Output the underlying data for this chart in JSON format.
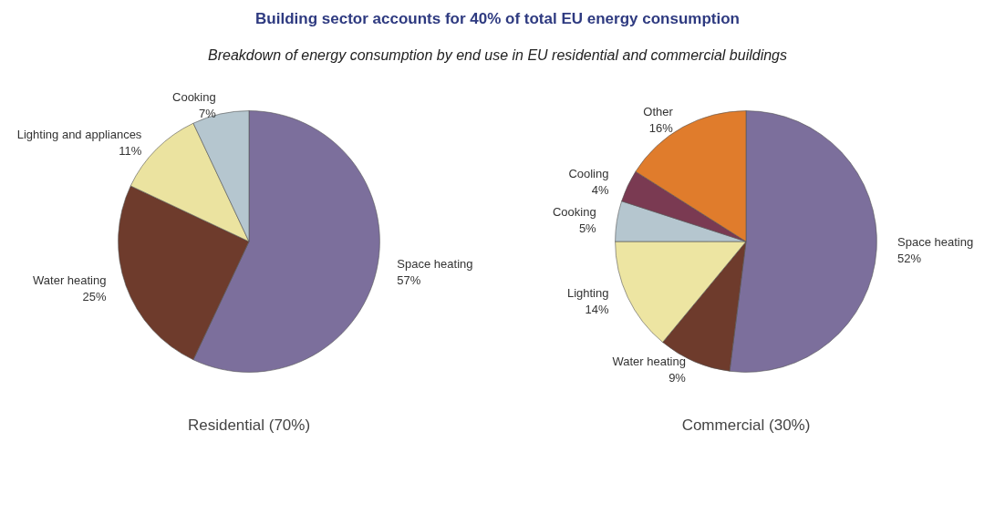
{
  "chart_data": [
    {
      "type": "pie",
      "title": "Building sector accounts for 40% of total EU energy consumption",
      "subtitle": "Breakdown of energy consumption by end use in EU residential and commercial buildings",
      "xlabel": "Residential (70%)",
      "categories": [
        "Space heating",
        "Water heating",
        "Lighting and appliances",
        "Cooking"
      ],
      "values": [
        57,
        25,
        11,
        7
      ],
      "value_labels": [
        "57%",
        "25%",
        "11%",
        "7%"
      ],
      "colors": [
        "#7c6f9c",
        "#6e3b2c",
        "#ebe3a0",
        "#b5c6cf"
      ]
    },
    {
      "type": "pie",
      "xlabel": "Commercial (30%)",
      "categories": [
        "Space heating",
        "Water heating",
        "Lighting",
        "Cooking",
        "Cooling",
        "Other"
      ],
      "values": [
        52,
        9,
        14,
        5,
        4,
        16
      ],
      "value_labels": [
        "52%",
        "9%",
        "14%",
        "5%",
        "4%",
        "16%"
      ],
      "colors": [
        "#7c6f9c",
        "#6e3b2c",
        "#ede5a2",
        "#b5c6cf",
        "#7a3a52",
        "#e07c2c"
      ]
    }
  ]
}
